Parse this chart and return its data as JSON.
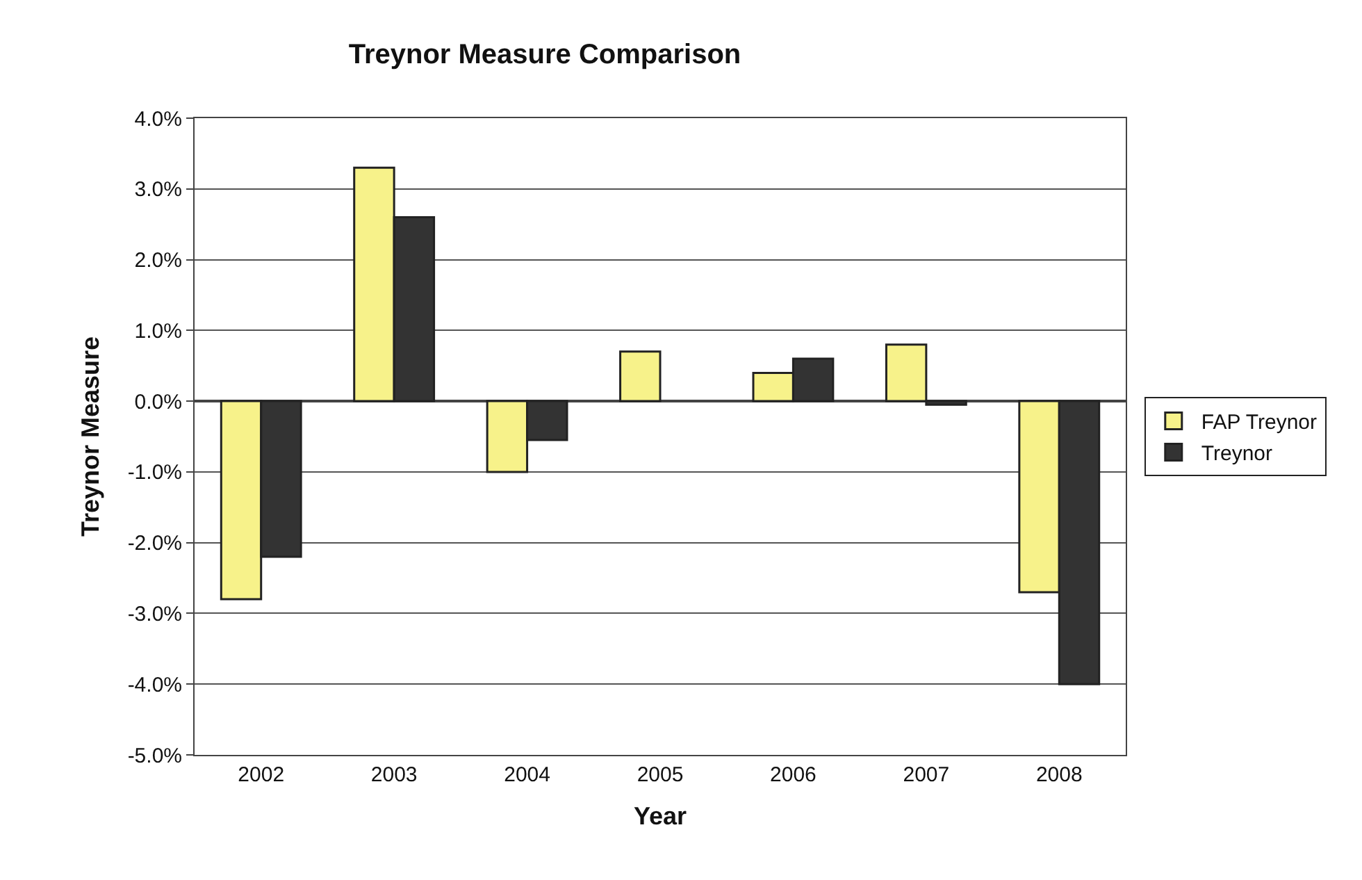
{
  "chart_data": {
    "type": "bar",
    "title": "Treynor Measure Comparison",
    "xlabel": "Year",
    "ylabel": "Treynor Measure",
    "categories": [
      "2002",
      "2003",
      "2004",
      "2005",
      "2006",
      "2007",
      "2008"
    ],
    "series": [
      {
        "name": "FAP Treynor",
        "color": "#f7f28a",
        "values": [
          -2.8,
          3.3,
          -1.0,
          0.7,
          0.4,
          0.8,
          -2.7
        ]
      },
      {
        "name": "Treynor",
        "color": "#333333",
        "values": [
          -2.2,
          2.6,
          -0.55,
          null,
          0.6,
          -0.05,
          -4.0
        ]
      }
    ],
    "ylim": [
      -5.0,
      4.0
    ],
    "yticks": [
      {
        "value": -5.0,
        "label": "-5.0%"
      },
      {
        "value": -4.0,
        "label": "-4.0%"
      },
      {
        "value": -3.0,
        "label": "-3.0%"
      },
      {
        "value": -2.0,
        "label": "-2.0%"
      },
      {
        "value": -1.0,
        "label": "-1.0%"
      },
      {
        "value": 0.0,
        "label": "0.0%"
      },
      {
        "value": 1.0,
        "label": "1.0%"
      },
      {
        "value": 2.0,
        "label": "2.0%"
      },
      {
        "value": 3.0,
        "label": "3.0%"
      },
      {
        "value": 4.0,
        "label": "4.0%"
      }
    ],
    "grid": "y",
    "legend": "right"
  }
}
